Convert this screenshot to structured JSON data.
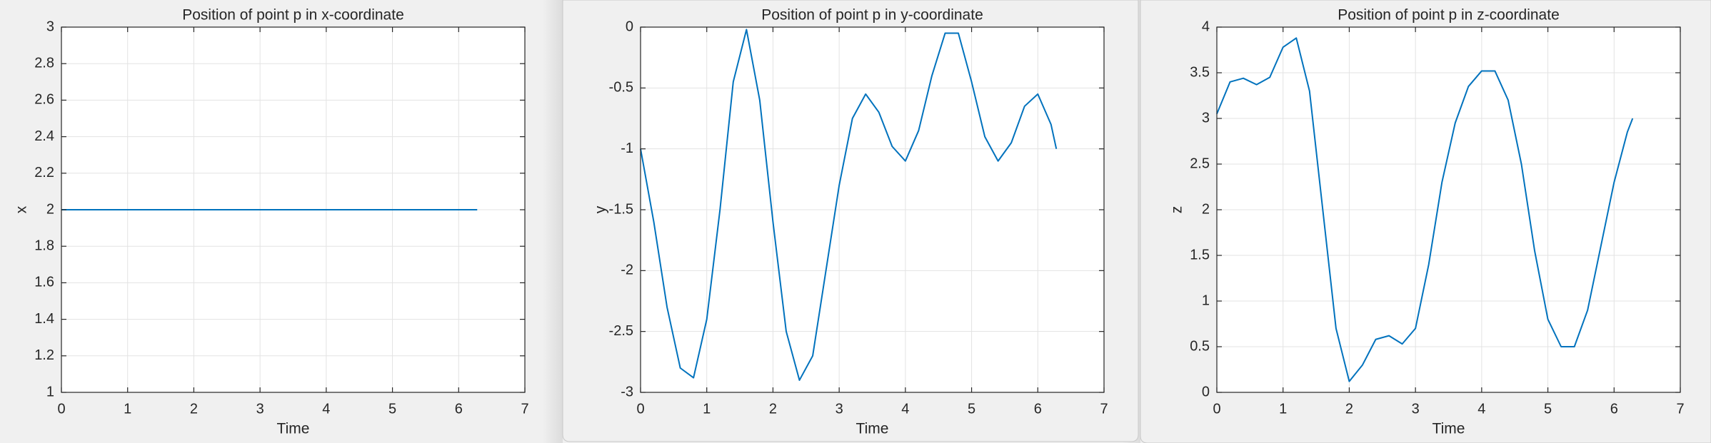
{
  "chart_data": [
    {
      "type": "line",
      "title": "Position of point p in x-coordinate",
      "xlabel": "Time",
      "ylabel": "x",
      "x": [
        0,
        6.28
      ],
      "series": [
        {
          "color": "#0072bd",
          "values": [
            2,
            2
          ]
        }
      ],
      "xlim": [
        0,
        7
      ],
      "xticks": [
        0,
        1,
        2,
        3,
        4,
        5,
        6,
        7
      ],
      "ylim": [
        1,
        3
      ],
      "yticks": [
        1,
        1.2,
        1.4,
        1.6,
        1.8,
        2,
        2.2,
        2.4,
        2.6,
        2.8,
        3
      ],
      "grid": true
    },
    {
      "type": "line",
      "title": "Position of point p in y-coordinate",
      "xlabel": "Time",
      "ylabel": "y",
      "x": [
        0,
        0.2,
        0.4,
        0.6,
        0.8,
        1.0,
        1.2,
        1.4,
        1.6,
        1.8,
        2.0,
        2.2,
        2.4,
        2.6,
        2.8,
        3.0,
        3.2,
        3.4,
        3.6,
        3.8,
        4.0,
        4.2,
        4.4,
        4.6,
        4.8,
        5.0,
        5.2,
        5.4,
        5.6,
        5.8,
        6.0,
        6.2,
        6.28
      ],
      "series": [
        {
          "color": "#0072bd",
          "values": [
            -1,
            -1.6,
            -2.3,
            -2.8,
            -2.88,
            -2.4,
            -1.5,
            -0.45,
            -0.02,
            -0.6,
            -1.6,
            -2.5,
            -2.9,
            -2.7,
            -2.0,
            -1.3,
            -0.75,
            -0.55,
            -0.7,
            -0.98,
            -1.1,
            -0.85,
            -0.4,
            -0.05,
            -0.05,
            -0.45,
            -0.9,
            -1.1,
            -0.95,
            -0.65,
            -0.55,
            -0.8,
            -1.0
          ]
        }
      ],
      "xlim": [
        0,
        7
      ],
      "xticks": [
        0,
        1,
        2,
        3,
        4,
        5,
        6,
        7
      ],
      "ylim": [
        -3,
        0
      ],
      "yticks": [
        -3,
        -2.5,
        -2,
        -1.5,
        -1,
        -0.5,
        0
      ],
      "grid": true
    },
    {
      "type": "line",
      "title": "Position of point p in z-coordinate",
      "xlabel": "Time",
      "ylabel": "z",
      "x": [
        0,
        0.2,
        0.4,
        0.6,
        0.8,
        1.0,
        1.2,
        1.4,
        1.6,
        1.8,
        2.0,
        2.2,
        2.4,
        2.6,
        2.8,
        3.0,
        3.2,
        3.4,
        3.6,
        3.8,
        4.0,
        4.2,
        4.4,
        4.6,
        4.8,
        5.0,
        5.2,
        5.4,
        5.6,
        5.8,
        6.0,
        6.2,
        6.28
      ],
      "series": [
        {
          "color": "#0072bd",
          "values": [
            3.05,
            3.4,
            3.44,
            3.37,
            3.45,
            3.78,
            3.88,
            3.3,
            2.0,
            0.7,
            0.12,
            0.3,
            0.58,
            0.62,
            0.53,
            0.7,
            1.4,
            2.3,
            2.95,
            3.35,
            3.52,
            3.52,
            3.2,
            2.5,
            1.55,
            0.8,
            0.5,
            0.5,
            0.9,
            1.6,
            2.3,
            2.85,
            3.0
          ]
        }
      ],
      "xlim": [
        0,
        7
      ],
      "xticks": [
        0,
        1,
        2,
        3,
        4,
        5,
        6,
        7
      ],
      "ylim": [
        0,
        4
      ],
      "yticks": [
        0,
        0.5,
        1,
        1.5,
        2,
        2.5,
        3,
        3.5,
        4
      ],
      "grid": true
    }
  ]
}
